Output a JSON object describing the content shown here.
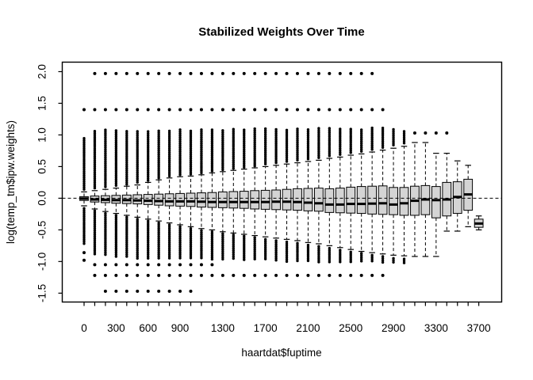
{
  "title": "Stabilized Weights Over Time",
  "colors": {
    "background": "#ffffff",
    "box_fill": "#d4d4d4",
    "stroke": "#000000"
  },
  "chart_data": {
    "type": "boxplot",
    "title": "Stabilized Weights Over Time",
    "xlabel": "haartdat$fuptime",
    "ylabel": "log(temp_tm$ipw.weights)",
    "ylim": [
      -1.64,
      2.15
    ],
    "grid": false,
    "reference_line_y": 0,
    "y_tick_values": [
      2.0,
      1.5,
      1.0,
      0.5,
      0.0,
      -0.5,
      -1.0,
      -1.5
    ],
    "y_tick_labels": [
      "2.0",
      "1.5",
      "1.0",
      "0.5",
      "0.0",
      "-0.5",
      "-1.0",
      "-1.5"
    ],
    "x_tick_label_indices": [
      0,
      3,
      6,
      9,
      13,
      17,
      21,
      25,
      29,
      33,
      37
    ],
    "x_tick_labels": [
      "0",
      "300",
      "600",
      "900",
      "1300",
      "1700",
      "2100",
      "2500",
      "2900",
      "3300",
      "3700"
    ],
    "groups": [
      {
        "fuptime": 0,
        "q1": -0.035,
        "med": -0.005,
        "q3": 0.025,
        "wlo": -0.12,
        "whi": 0.1,
        "out_hi": [
          0.14,
          0.95
        ],
        "out_lo": [
          -0.16,
          -0.72
        ],
        "dots_hi": [
          1.4
        ],
        "dots_lo": [
          -0.86,
          -0.98
        ]
      },
      {
        "fuptime": 100,
        "q1": -0.06,
        "med": -0.02,
        "q3": 0.035,
        "wlo": -0.17,
        "whi": 0.12,
        "out_hi": [
          0.16,
          1.08
        ],
        "out_lo": [
          -0.2,
          -0.9
        ],
        "dots_hi": [
          1.4,
          1.97
        ],
        "dots_lo": [
          -1.05,
          -1.22
        ]
      },
      {
        "fuptime": 200,
        "q1": -0.07,
        "med": -0.025,
        "q3": 0.04,
        "wlo": -0.21,
        "whi": 0.14,
        "out_hi": [
          0.18,
          1.08
        ],
        "out_lo": [
          -0.24,
          -0.92
        ],
        "dots_hi": [
          1.4,
          1.97
        ],
        "dots_lo": [
          -1.05,
          -1.22,
          -1.47
        ]
      },
      {
        "fuptime": 300,
        "q1": -0.08,
        "med": -0.03,
        "q3": 0.045,
        "wlo": -0.24,
        "whi": 0.16,
        "out_hi": [
          0.2,
          1.08
        ],
        "out_lo": [
          -0.27,
          -0.93
        ],
        "dots_hi": [
          1.4,
          1.97
        ],
        "dots_lo": [
          -1.05,
          -1.22,
          -1.47
        ]
      },
      {
        "fuptime": 400,
        "q1": -0.085,
        "med": -0.03,
        "q3": 0.05,
        "wlo": -0.27,
        "whi": 0.19,
        "out_hi": [
          0.22,
          1.08
        ],
        "out_lo": [
          -0.3,
          -0.94
        ],
        "dots_hi": [
          1.4,
          1.97
        ],
        "dots_lo": [
          -1.05,
          -1.22,
          -1.47
        ]
      },
      {
        "fuptime": 500,
        "q1": -0.09,
        "med": -0.035,
        "q3": 0.055,
        "wlo": -0.3,
        "whi": 0.21,
        "out_hi": [
          0.25,
          1.08
        ],
        "out_lo": [
          -0.33,
          -0.95
        ],
        "dots_hi": [
          1.4,
          1.97
        ],
        "dots_lo": [
          -1.05,
          -1.22,
          -1.47
        ]
      },
      {
        "fuptime": 600,
        "q1": -0.1,
        "med": -0.04,
        "q3": 0.06,
        "wlo": -0.33,
        "whi": 0.25,
        "out_hi": [
          0.28,
          1.08
        ],
        "out_lo": [
          -0.36,
          -0.95
        ],
        "dots_hi": [
          1.4,
          1.97
        ],
        "dots_lo": [
          -1.05,
          -1.22,
          -1.47
        ]
      },
      {
        "fuptime": 700,
        "q1": -0.11,
        "med": -0.045,
        "q3": 0.065,
        "wlo": -0.36,
        "whi": 0.29,
        "out_hi": [
          0.32,
          1.08
        ],
        "out_lo": [
          -0.39,
          -0.96
        ],
        "dots_hi": [
          1.4,
          1.97
        ],
        "dots_lo": [
          -1.05,
          -1.22,
          -1.47
        ]
      },
      {
        "fuptime": 800,
        "q1": -0.12,
        "med": -0.05,
        "q3": 0.07,
        "wlo": -0.39,
        "whi": 0.32,
        "out_hi": [
          0.35,
          1.08
        ],
        "out_lo": [
          -0.42,
          -0.96
        ],
        "dots_hi": [
          1.4,
          1.97
        ],
        "dots_lo": [
          -1.05,
          -1.22,
          -1.47
        ]
      },
      {
        "fuptime": 900,
        "q1": -0.125,
        "med": -0.05,
        "q3": 0.075,
        "wlo": -0.42,
        "whi": 0.34,
        "out_hi": [
          0.37,
          1.09
        ],
        "out_lo": [
          -0.45,
          -0.97
        ],
        "dots_hi": [
          1.4,
          1.97
        ],
        "dots_lo": [
          -1.05,
          -1.22,
          -1.47
        ]
      },
      {
        "fuptime": 1000,
        "q1": -0.13,
        "med": -0.05,
        "q3": 0.08,
        "wlo": -0.45,
        "whi": 0.35,
        "out_hi": [
          0.38,
          1.09
        ],
        "out_lo": [
          -0.48,
          -0.97
        ],
        "dots_hi": [
          1.4,
          1.97
        ],
        "dots_lo": [
          -1.05,
          -1.22,
          -1.47
        ]
      },
      {
        "fuptime": 1100,
        "q1": -0.14,
        "med": -0.055,
        "q3": 0.085,
        "wlo": -0.48,
        "whi": 0.37,
        "out_hi": [
          0.4,
          1.09
        ],
        "out_lo": [
          -0.51,
          -0.97
        ],
        "dots_hi": [
          1.4,
          1.97
        ],
        "dots_lo": [
          -1.05,
          -1.22
        ]
      },
      {
        "fuptime": 1200,
        "q1": -0.145,
        "med": -0.06,
        "q3": 0.09,
        "wlo": -0.5,
        "whi": 0.4,
        "out_hi": [
          0.43,
          1.09
        ],
        "out_lo": [
          -0.53,
          -0.98
        ],
        "dots_hi": [
          1.4,
          1.97
        ],
        "dots_lo": [
          -1.05,
          -1.22
        ]
      },
      {
        "fuptime": 1300,
        "q1": -0.15,
        "med": -0.06,
        "q3": 0.1,
        "wlo": -0.53,
        "whi": 0.42,
        "out_hi": [
          0.45,
          1.09
        ],
        "out_lo": [
          -0.56,
          -0.98
        ],
        "dots_hi": [
          1.4,
          1.97
        ],
        "dots_lo": [
          -1.22
        ]
      },
      {
        "fuptime": 1400,
        "q1": -0.155,
        "med": -0.06,
        "q3": 0.105,
        "wlo": -0.55,
        "whi": 0.44,
        "out_hi": [
          0.47,
          1.1
        ],
        "out_lo": [
          -0.58,
          -0.98
        ],
        "dots_hi": [
          1.4,
          1.97
        ],
        "dots_lo": [
          -1.22
        ]
      },
      {
        "fuptime": 1500,
        "q1": -0.16,
        "med": -0.06,
        "q3": 0.11,
        "wlo": -0.57,
        "whi": 0.46,
        "out_hi": [
          0.49,
          1.1
        ],
        "out_lo": [
          -0.6,
          -0.99
        ],
        "dots_hi": [
          1.4,
          1.97
        ],
        "dots_lo": [
          -1.22
        ]
      },
      {
        "fuptime": 1600,
        "q1": -0.17,
        "med": -0.06,
        "q3": 0.12,
        "wlo": -0.59,
        "whi": 0.48,
        "out_hi": [
          0.51,
          1.1
        ],
        "out_lo": [
          -0.62,
          -0.99
        ],
        "dots_hi": [
          1.4,
          1.97
        ],
        "dots_lo": [
          -1.22
        ]
      },
      {
        "fuptime": 1700,
        "q1": -0.175,
        "med": -0.06,
        "q3": 0.125,
        "wlo": -0.61,
        "whi": 0.5,
        "out_hi": [
          0.54,
          1.1
        ],
        "out_lo": [
          -0.65,
          -0.99
        ],
        "dots_hi": [
          1.4,
          1.97
        ],
        "dots_lo": [
          -1.22
        ]
      },
      {
        "fuptime": 1800,
        "q1": -0.18,
        "med": -0.055,
        "q3": 0.13,
        "wlo": -0.63,
        "whi": 0.52,
        "out_hi": [
          0.56,
          1.1
        ],
        "out_lo": [
          -0.67,
          -1.0
        ],
        "dots_hi": [
          1.4,
          1.97
        ],
        "dots_lo": [
          -1.22
        ]
      },
      {
        "fuptime": 1900,
        "q1": -0.185,
        "med": -0.055,
        "q3": 0.14,
        "wlo": -0.65,
        "whi": 0.54,
        "out_hi": [
          0.58,
          1.1
        ],
        "out_lo": [
          -0.69,
          -1.0
        ],
        "dots_hi": [
          1.4,
          1.97
        ],
        "dots_lo": [
          -1.22
        ]
      },
      {
        "fuptime": 2000,
        "q1": -0.19,
        "med": -0.06,
        "q3": 0.15,
        "wlo": -0.67,
        "whi": 0.56,
        "out_hi": [
          0.6,
          1.1
        ],
        "out_lo": [
          -0.71,
          -1.0
        ],
        "dots_hi": [
          1.4,
          1.97
        ],
        "dots_lo": [
          -1.22
        ]
      },
      {
        "fuptime": 2100,
        "q1": -0.2,
        "med": -0.07,
        "q3": 0.155,
        "wlo": -0.7,
        "whi": 0.58,
        "out_hi": [
          0.62,
          1.11
        ],
        "out_lo": [
          -0.74,
          -1.0
        ],
        "dots_hi": [
          1.4,
          1.97
        ],
        "dots_lo": [
          -1.22
        ]
      },
      {
        "fuptime": 2200,
        "q1": -0.205,
        "med": -0.08,
        "q3": 0.16,
        "wlo": -0.72,
        "whi": 0.6,
        "out_hi": [
          0.64,
          1.11
        ],
        "out_lo": [
          -0.76,
          -1.01
        ],
        "dots_hi": [
          1.4,
          1.97
        ],
        "dots_lo": [
          -1.22
        ]
      },
      {
        "fuptime": 2300,
        "q1": -0.225,
        "med": -0.1,
        "q3": 0.15,
        "wlo": -0.75,
        "whi": 0.63,
        "out_hi": [
          0.67,
          1.11
        ],
        "out_lo": [
          -0.79,
          -1.01
        ],
        "dots_hi": [
          1.4,
          1.97
        ],
        "dots_lo": [
          -1.22
        ]
      },
      {
        "fuptime": 2400,
        "q1": -0.23,
        "med": -0.1,
        "q3": 0.16,
        "wlo": -0.78,
        "whi": 0.65,
        "out_hi": [
          0.69,
          1.11
        ],
        "out_lo": [
          -0.82,
          -1.01
        ],
        "dots_hi": [
          1.4,
          1.97
        ],
        "dots_lo": [
          -1.22
        ]
      },
      {
        "fuptime": 2500,
        "q1": -0.235,
        "med": -0.09,
        "q3": 0.175,
        "wlo": -0.81,
        "whi": 0.68,
        "out_hi": [
          0.72,
          1.11
        ],
        "out_lo": [
          -0.85,
          -1.02
        ],
        "dots_hi": [
          1.4,
          1.97
        ],
        "dots_lo": [
          -1.22
        ]
      },
      {
        "fuptime": 2600,
        "q1": -0.24,
        "med": -0.09,
        "q3": 0.185,
        "wlo": -0.84,
        "whi": 0.7,
        "out_hi": [
          0.74,
          1.11
        ],
        "out_lo": [
          -0.87,
          -1.02
        ],
        "dots_hi": [
          1.4,
          1.97
        ],
        "dots_lo": [
          -1.22
        ]
      },
      {
        "fuptime": 2700,
        "q1": -0.25,
        "med": -0.085,
        "q3": 0.19,
        "wlo": -0.86,
        "whi": 0.73,
        "out_hi": [
          0.77,
          1.12
        ],
        "out_lo": [
          -0.9,
          -1.02
        ],
        "dots_hi": [
          1.4,
          1.97
        ],
        "dots_lo": [
          -1.22
        ]
      },
      {
        "fuptime": 2800,
        "q1": -0.255,
        "med": -0.08,
        "q3": 0.195,
        "wlo": -0.88,
        "whi": 0.76,
        "out_hi": [
          0.8,
          1.12
        ],
        "out_lo": [
          -0.92,
          -1.03
        ],
        "dots_hi": [
          1.4
        ],
        "dots_lo": [
          -1.22
        ]
      },
      {
        "fuptime": 2900,
        "q1": -0.26,
        "med": -0.1,
        "q3": 0.17,
        "wlo": -0.9,
        "whi": 0.79,
        "out_hi": [
          0.84,
          1.1
        ],
        "out_lo": [
          -0.95,
          -1.03
        ],
        "dots_hi": [],
        "dots_lo": []
      },
      {
        "fuptime": 3000,
        "q1": -0.27,
        "med": -0.08,
        "q3": 0.17,
        "wlo": -0.91,
        "whi": 0.82,
        "out_hi": [
          0.87,
          1.08
        ],
        "out_lo": [
          -0.96,
          -1.04
        ],
        "dots_hi": [],
        "dots_lo": []
      },
      {
        "fuptime": 3100,
        "q1": -0.27,
        "med": -0.04,
        "q3": 0.19,
        "wlo": -0.92,
        "whi": 0.88,
        "out_hi": null,
        "out_lo": null,
        "dots_hi": [
          1.03
        ],
        "dots_lo": []
      },
      {
        "fuptime": 3200,
        "q1": -0.26,
        "med": -0.02,
        "q3": 0.2,
        "wlo": -0.92,
        "whi": 0.88,
        "out_hi": null,
        "out_lo": null,
        "dots_hi": [
          1.03
        ],
        "dots_lo": []
      },
      {
        "fuptime": 3300,
        "q1": -0.31,
        "med": -0.03,
        "q3": 0.185,
        "wlo": -0.92,
        "whi": 0.71,
        "out_hi": null,
        "out_lo": null,
        "dots_hi": [
          1.03
        ],
        "dots_lo": []
      },
      {
        "fuptime": 3400,
        "q1": -0.28,
        "med": -0.02,
        "q3": 0.25,
        "wlo": -0.52,
        "whi": 0.71,
        "out_hi": null,
        "out_lo": null,
        "dots_hi": [
          1.03
        ],
        "dots_lo": []
      },
      {
        "fuptime": 3500,
        "q1": -0.24,
        "med": 0.02,
        "q3": 0.26,
        "wlo": -0.52,
        "whi": 0.59,
        "out_hi": null,
        "out_lo": null,
        "dots_hi": [],
        "dots_lo": []
      },
      {
        "fuptime": 3600,
        "q1": -0.19,
        "med": 0.06,
        "q3": 0.3,
        "wlo": -0.45,
        "whi": 0.52,
        "out_hi": null,
        "out_lo": null,
        "dots_hi": [],
        "dots_lo": []
      },
      {
        "fuptime": 3700,
        "q1": -0.46,
        "med": -0.4,
        "q3": -0.33,
        "wlo": -0.5,
        "whi": -0.28,
        "out_hi": null,
        "out_lo": null,
        "dots_hi": [],
        "dots_lo": []
      }
    ]
  }
}
